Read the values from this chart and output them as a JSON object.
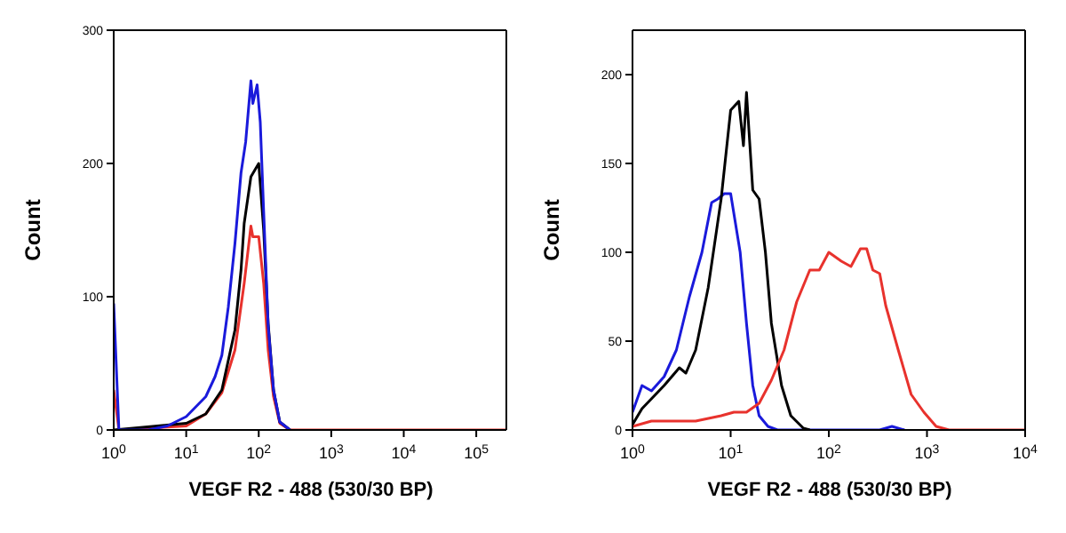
{
  "chart_data": [
    {
      "type": "line",
      "xlabel": "VEGF R2 - 488 (530/30 BP)",
      "ylabel": "Count",
      "log": "x",
      "grid": false,
      "legend": false,
      "marker": "none",
      "xlim": [
        1,
        260000
      ],
      "xticks": [
        {
          "value": 1,
          "label": "10$^{0}$"
        },
        {
          "value": 10,
          "label": "10$^{1}$"
        },
        {
          "value": 100,
          "label": "10$^{2}$"
        },
        {
          "value": 1000,
          "label": "10$^{3}$"
        },
        {
          "value": 10000,
          "label": "10$^{4}$"
        },
        {
          "value": 100000,
          "label": "10$^{5}$"
        }
      ],
      "ylim": [
        0,
        300
      ],
      "yticks": [
        0,
        100,
        200,
        300
      ],
      "series": [
        {
          "color": "#e8322d",
          "x": [
            1,
            1.18,
            10,
            18.6,
            31,
            47,
            63,
            78,
            83,
            100,
            117,
            135,
            160,
            195,
            270,
            260000
          ],
          "values": [
            30,
            0,
            3,
            12,
            28,
            60,
            110,
            153,
            145,
            145,
            110,
            60,
            25,
            5,
            0,
            0
          ]
        },
        {
          "color": "#000000",
          "x": [
            1,
            10,
            18.6,
            31,
            47,
            57,
            63,
            78,
            100,
            117,
            135,
            160,
            195,
            270
          ],
          "values": [
            0,
            5,
            12,
            30,
            75,
            120,
            155,
            190,
            200,
            150,
            80,
            30,
            6,
            0
          ]
        },
        {
          "color": "#1a1adb",
          "x": [
            1,
            1.18,
            3,
            5.5,
            10,
            18.6,
            25,
            31,
            38,
            47,
            57,
            66,
            78,
            83,
            95,
            105,
            117,
            135,
            160,
            195,
            270
          ],
          "values": [
            95,
            0,
            0,
            3,
            10,
            25,
            40,
            56,
            92,
            140,
            193,
            216,
            262,
            245,
            259,
            231,
            164,
            78,
            30,
            6,
            0
          ]
        }
      ]
    },
    {
      "type": "line",
      "xlabel": "VEGF R2 - 488 (530/30 BP)",
      "ylabel": "Count",
      "log": "x",
      "grid": false,
      "legend": false,
      "marker": "none",
      "xlim": [
        1,
        10000
      ],
      "xticks": [
        {
          "value": 1,
          "label": "10$^{0}$"
        },
        {
          "value": 10,
          "label": "10$^{1}$"
        },
        {
          "value": 100,
          "label": "10$^{2}$"
        },
        {
          "value": 1000,
          "label": "10$^{3}$"
        },
        {
          "value": 10000,
          "label": "10$^{4}$"
        }
      ],
      "ylim": [
        0,
        225
      ],
      "yticks": [
        0,
        50,
        100,
        150,
        200
      ],
      "series": [
        {
          "color": "#1a1adb",
          "x": [
            1,
            1.25,
            1.56,
            2.1,
            2.8,
            3.8,
            5.1,
            6.4,
            7.4,
            8.6,
            10,
            12.5,
            14.5,
            16.8,
            19.5,
            24,
            30,
            330,
            440,
            590
          ],
          "values": [
            10,
            25,
            22,
            30,
            45,
            75,
            100,
            128,
            130,
            133,
            133,
            100,
            60,
            25,
            8,
            2,
            0,
            0,
            2,
            0
          ]
        },
        {
          "color": "#000000",
          "x": [
            1,
            1.25,
            2.1,
            3,
            3.5,
            4.4,
            5.9,
            8,
            10,
            12.1,
            13.5,
            14.5,
            16.8,
            19.5,
            22.6,
            26,
            33,
            41,
            55,
            64
          ],
          "values": [
            3,
            12,
            25,
            35,
            32,
            45,
            80,
            130,
            180,
            185,
            160,
            190,
            135,
            130,
            100,
            60,
            25,
            8,
            1,
            0
          ]
        },
        {
          "color": "#e8322d",
          "x": [
            1,
            1.56,
            4.4,
            8,
            10.8,
            14.5,
            19.5,
            26,
            35,
            47,
            64,
            80,
            100,
            134,
            168,
            210,
            243,
            281,
            330,
            380,
            510,
            690,
            930,
            1240,
            1680,
            10000
          ],
          "values": [
            2,
            5,
            5,
            8,
            10,
            10,
            15,
            28,
            45,
            72,
            90,
            90,
            100,
            95,
            92,
            102,
            102,
            90,
            88,
            70,
            45,
            20,
            10,
            2,
            0,
            0
          ]
        }
      ]
    }
  ]
}
